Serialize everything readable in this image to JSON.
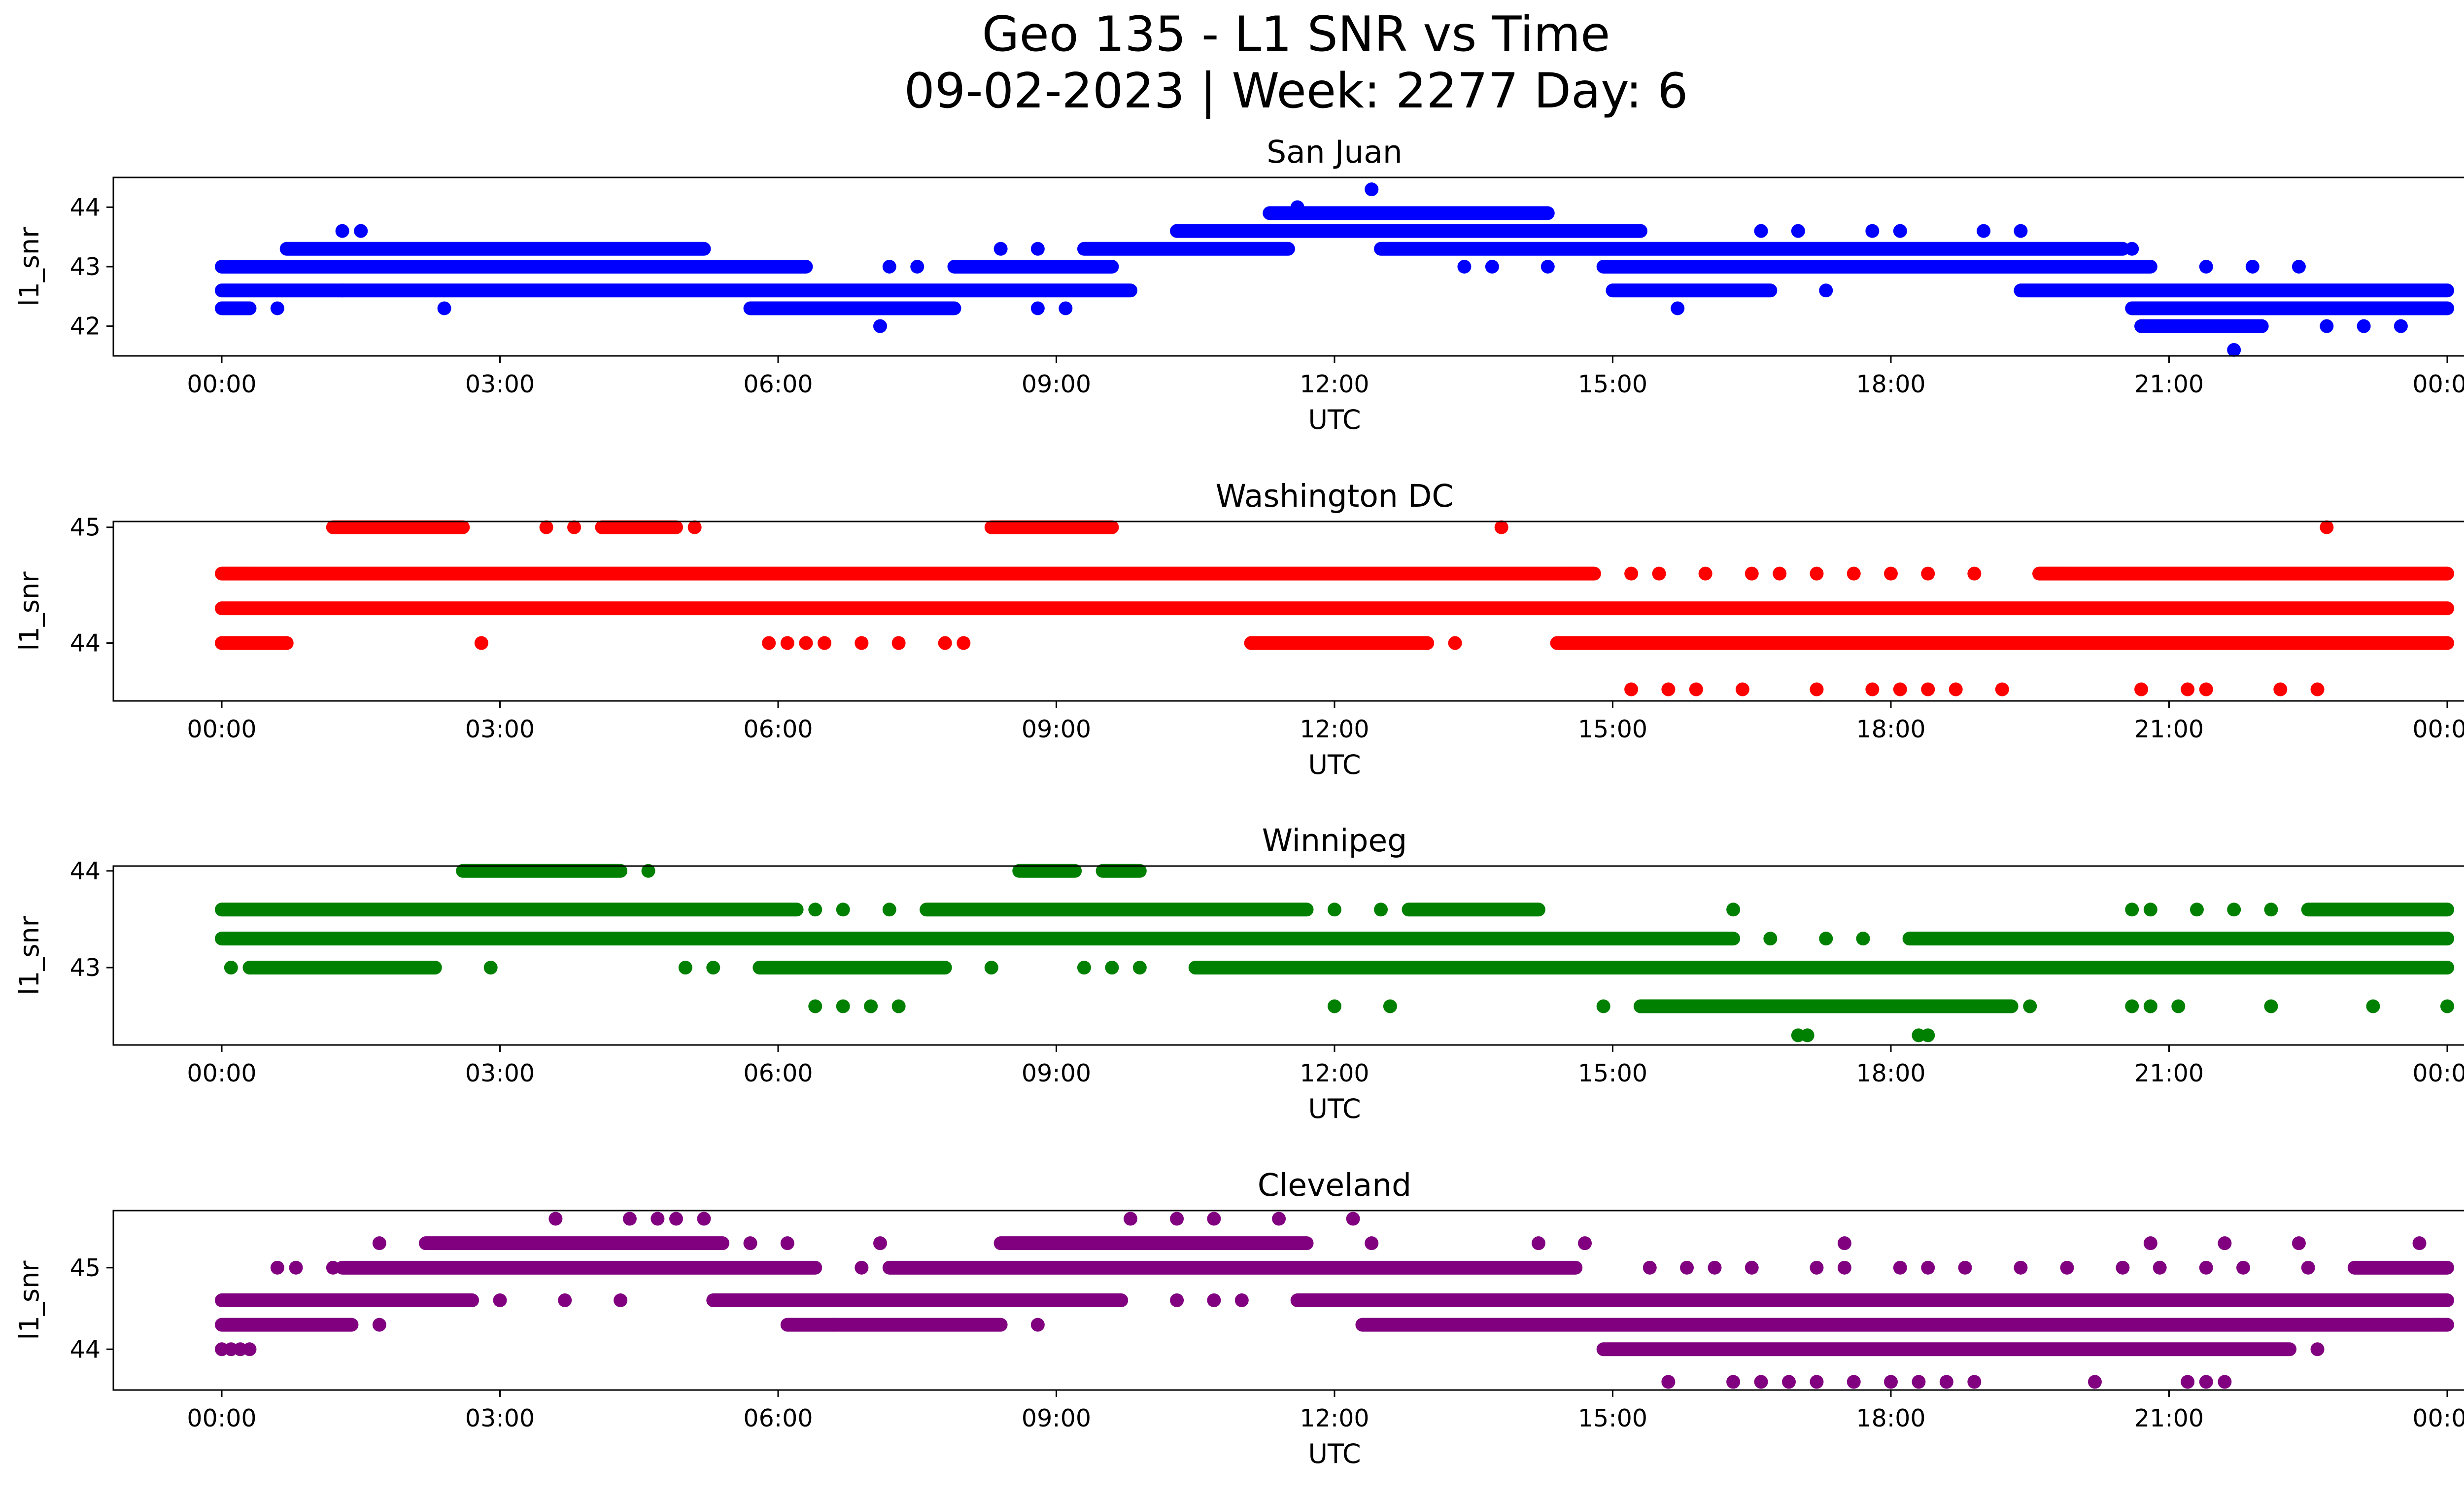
{
  "figure": {
    "title_line1": "Geo 135 - L1 SNR vs Time",
    "title_line2": "09-02-2023 | Week: 2277 Day: 6"
  },
  "chart_data": [
    {
      "type": "scatter",
      "title": "San Juan",
      "xlabel": "UTC",
      "ylabel": "l1_snr",
      "color": "#0000ff",
      "xlim": [
        "00:00",
        "24:00"
      ],
      "ylim": [
        41.5,
        44.5
      ],
      "x_ticks": [
        "00:00",
        "03:00",
        "06:00",
        "09:00",
        "12:00",
        "15:00",
        "18:00",
        "21:00",
        "00:00"
      ],
      "y_ticks": [
        42,
        43,
        44
      ],
      "bands": [
        {
          "y": 43.0,
          "from": 0.0,
          "to": 6.3
        },
        {
          "y": 43.0,
          "from": 7.9,
          "to": 9.6
        },
        {
          "y": 43.0,
          "from": 14.9,
          "to": 20.8
        },
        {
          "y": 43.3,
          "from": 0.7,
          "to": 5.2
        },
        {
          "y": 43.3,
          "from": 9.3,
          "to": 11.5
        },
        {
          "y": 43.3,
          "from": 12.5,
          "to": 20.5
        },
        {
          "y": 43.6,
          "from": 10.3,
          "to": 15.3
        },
        {
          "y": 43.9,
          "from": 11.3,
          "to": 14.3
        },
        {
          "y": 42.6,
          "from": 0.0,
          "to": 9.8
        },
        {
          "y": 42.6,
          "from": 15.0,
          "to": 16.7
        },
        {
          "y": 42.6,
          "from": 19.4,
          "to": 24.0
        },
        {
          "y": 42.3,
          "from": 0.0,
          "to": 0.3
        },
        {
          "y": 42.3,
          "from": 5.7,
          "to": 7.9
        },
        {
          "y": 42.3,
          "from": 20.6,
          "to": 24.0
        },
        {
          "y": 42.0,
          "from": 20.7,
          "to": 22.0
        }
      ],
      "points": [
        [
          0.6,
          42.3
        ],
        [
          1.3,
          43.6
        ],
        [
          1.5,
          43.6
        ],
        [
          1.3,
          42.6
        ],
        [
          2.4,
          42.3
        ],
        [
          7.1,
          42.0
        ],
        [
          7.2,
          43.0
        ],
        [
          7.5,
          43.0
        ],
        [
          8.4,
          43.3
        ],
        [
          8.8,
          43.3
        ],
        [
          8.8,
          42.3
        ],
        [
          9.1,
          42.3
        ],
        [
          11.6,
          44.0
        ],
        [
          12.4,
          44.3
        ],
        [
          13.4,
          43.0
        ],
        [
          13.7,
          43.0
        ],
        [
          14.3,
          43.0
        ],
        [
          15.7,
          42.3
        ],
        [
          16.6,
          43.6
        ],
        [
          17.0,
          43.6
        ],
        [
          17.3,
          42.6
        ],
        [
          17.8,
          43.6
        ],
        [
          18.1,
          43.6
        ],
        [
          19.0,
          43.6
        ],
        [
          19.4,
          43.6
        ],
        [
          20.6,
          43.3
        ],
        [
          21.7,
          41.6
        ],
        [
          21.4,
          43.0
        ],
        [
          21.9,
          43.0
        ],
        [
          22.4,
          43.0
        ],
        [
          22.7,
          42.0
        ],
        [
          23.1,
          42.0
        ],
        [
          23.5,
          42.0
        ]
      ]
    },
    {
      "type": "scatter",
      "title": "Washington DC",
      "xlabel": "UTC",
      "ylabel": "l1_snr",
      "color": "#ff0000",
      "xlim": [
        "00:00",
        "24:00"
      ],
      "ylim": [
        43.5,
        45.05
      ],
      "x_ticks": [
        "00:00",
        "03:00",
        "06:00",
        "09:00",
        "12:00",
        "15:00",
        "18:00",
        "21:00",
        "00:00"
      ],
      "y_ticks": [
        44,
        45
      ],
      "bands": [
        {
          "y": 44.3,
          "from": 0.0,
          "to": 24.0
        },
        {
          "y": 44.6,
          "from": 0.0,
          "to": 14.8
        },
        {
          "y": 44.6,
          "from": 19.6,
          "to": 24.0
        },
        {
          "y": 44.0,
          "from": 0.0,
          "to": 0.7
        },
        {
          "y": 44.0,
          "from": 11.1,
          "to": 13.0
        },
        {
          "y": 44.0,
          "from": 14.4,
          "to": 24.0
        },
        {
          "y": 45.0,
          "from": 1.2,
          "to": 2.6
        },
        {
          "y": 45.0,
          "from": 4.1,
          "to": 4.9
        },
        {
          "y": 45.0,
          "from": 8.3,
          "to": 9.6
        }
      ],
      "points": [
        [
          2.8,
          44.0
        ],
        [
          3.5,
          45.0
        ],
        [
          3.8,
          45.0
        ],
        [
          5.1,
          45.0
        ],
        [
          5.9,
          44.0
        ],
        [
          6.1,
          44.0
        ],
        [
          6.3,
          44.0
        ],
        [
          6.5,
          44.0
        ],
        [
          6.9,
          44.0
        ],
        [
          7.3,
          44.0
        ],
        [
          7.8,
          44.0
        ],
        [
          8.0,
          44.0
        ],
        [
          13.3,
          44.0
        ],
        [
          13.8,
          45.0
        ],
        [
          15.2,
          44.6
        ],
        [
          15.5,
          44.6
        ],
        [
          16.0,
          44.6
        ],
        [
          16.5,
          44.6
        ],
        [
          16.8,
          44.6
        ],
        [
          17.2,
          44.6
        ],
        [
          17.6,
          44.6
        ],
        [
          18.0,
          44.6
        ],
        [
          18.4,
          44.6
        ],
        [
          18.9,
          44.6
        ],
        [
          15.2,
          43.6
        ],
        [
          15.6,
          43.6
        ],
        [
          15.9,
          43.6
        ],
        [
          16.4,
          43.6
        ],
        [
          17.2,
          43.6
        ],
        [
          17.8,
          43.6
        ],
        [
          18.1,
          43.6
        ],
        [
          18.4,
          43.6
        ],
        [
          18.7,
          43.6
        ],
        [
          19.2,
          43.6
        ],
        [
          20.7,
          43.6
        ],
        [
          21.2,
          43.6
        ],
        [
          21.4,
          43.6
        ],
        [
          22.2,
          43.6
        ],
        [
          22.6,
          43.6
        ],
        [
          22.7,
          45.0
        ]
      ]
    },
    {
      "type": "scatter",
      "title": "Winnipeg",
      "xlabel": "UTC",
      "ylabel": "l1_snr",
      "color": "#008000",
      "xlim": [
        "00:00",
        "24:00"
      ],
      "ylim": [
        42.2,
        44.05
      ],
      "x_ticks": [
        "00:00",
        "03:00",
        "06:00",
        "09:00",
        "12:00",
        "15:00",
        "18:00",
        "21:00",
        "00:00"
      ],
      "y_ticks": [
        43,
        44
      ],
      "bands": [
        {
          "y": 43.3,
          "from": 0.0,
          "to": 16.3
        },
        {
          "y": 43.3,
          "from": 18.2,
          "to": 24.0
        },
        {
          "y": 43.6,
          "from": 0.0,
          "to": 6.2
        },
        {
          "y": 43.6,
          "from": 7.6,
          "to": 11.7
        },
        {
          "y": 43.6,
          "from": 12.8,
          "to": 14.2
        },
        {
          "y": 43.6,
          "from": 22.5,
          "to": 24.0
        },
        {
          "y": 43.0,
          "from": 0.3,
          "to": 2.3
        },
        {
          "y": 43.0,
          "from": 5.8,
          "to": 7.8
        },
        {
          "y": 43.0,
          "from": 10.5,
          "to": 24.0
        },
        {
          "y": 42.6,
          "from": 15.3,
          "to": 19.3
        },
        {
          "y": 44.0,
          "from": 2.6,
          "to": 4.3
        },
        {
          "y": 44.0,
          "from": 8.6,
          "to": 9.2
        },
        {
          "y": 44.0,
          "from": 9.5,
          "to": 9.9
        }
      ],
      "points": [
        [
          0.1,
          43.0
        ],
        [
          2.9,
          43.0
        ],
        [
          4.6,
          44.0
        ],
        [
          5.0,
          43.0
        ],
        [
          5.3,
          43.0
        ],
        [
          8.3,
          43.0
        ],
        [
          6.4,
          42.6
        ],
        [
          6.7,
          42.6
        ],
        [
          7.0,
          42.6
        ],
        [
          7.3,
          42.6
        ],
        [
          6.4,
          43.6
        ],
        [
          6.7,
          43.6
        ],
        [
          7.2,
          43.6
        ],
        [
          9.3,
          43.0
        ],
        [
          9.6,
          43.0
        ],
        [
          9.9,
          43.0
        ],
        [
          12.0,
          42.6
        ],
        [
          12.6,
          42.6
        ],
        [
          12.5,
          43.6
        ],
        [
          12.0,
          43.6
        ],
        [
          14.9,
          42.6
        ],
        [
          16.3,
          43.6
        ],
        [
          16.7,
          43.3
        ],
        [
          17.3,
          43.3
        ],
        [
          17.7,
          43.3
        ],
        [
          17.0,
          42.3
        ],
        [
          17.1,
          42.3
        ],
        [
          18.3,
          42.3
        ],
        [
          18.4,
          42.3
        ],
        [
          19.5,
          42.6
        ],
        [
          20.6,
          42.6
        ],
        [
          20.8,
          42.6
        ],
        [
          21.1,
          42.6
        ],
        [
          22.1,
          42.6
        ],
        [
          23.2,
          42.6
        ],
        [
          24.0,
          42.6
        ],
        [
          20.6,
          43.6
        ],
        [
          20.8,
          43.6
        ],
        [
          21.3,
          43.6
        ],
        [
          21.7,
          43.6
        ],
        [
          22.1,
          43.6
        ]
      ]
    },
    {
      "type": "scatter",
      "title": "Cleveland",
      "xlabel": "UTC",
      "ylabel": "l1_snr",
      "color": "#800080",
      "xlim": [
        "00:00",
        "24:00"
      ],
      "ylim": [
        43.5,
        45.7
      ],
      "x_ticks": [
        "00:00",
        "03:00",
        "06:00",
        "09:00",
        "12:00",
        "15:00",
        "18:00",
        "21:00",
        "00:00"
      ],
      "y_ticks": [
        44,
        45
      ],
      "bands": [
        {
          "y": 44.6,
          "from": 0.0,
          "to": 2.7
        },
        {
          "y": 44.6,
          "from": 5.3,
          "to": 9.7
        },
        {
          "y": 44.6,
          "from": 11.6,
          "to": 24.0
        },
        {
          "y": 44.3,
          "from": 0.0,
          "to": 1.4
        },
        {
          "y": 44.3,
          "from": 6.1,
          "to": 8.4
        },
        {
          "y": 44.3,
          "from": 12.3,
          "to": 24.0
        },
        {
          "y": 45.0,
          "from": 1.3,
          "to": 6.4
        },
        {
          "y": 45.0,
          "from": 7.2,
          "to": 14.6
        },
        {
          "y": 45.0,
          "from": 23.0,
          "to": 24.0
        },
        {
          "y": 45.3,
          "from": 2.2,
          "to": 5.4
        },
        {
          "y": 45.3,
          "from": 8.4,
          "to": 11.7
        },
        {
          "y": 44.0,
          "from": 14.9,
          "to": 22.3
        }
      ],
      "points": [
        [
          0.0,
          44.0
        ],
        [
          0.1,
          44.0
        ],
        [
          0.2,
          44.0
        ],
        [
          0.3,
          44.0
        ],
        [
          0.6,
          45.0
        ],
        [
          0.8,
          45.0
        ],
        [
          1.2,
          45.0
        ],
        [
          1.7,
          45.3
        ],
        [
          3.6,
          45.6
        ],
        [
          4.4,
          45.6
        ],
        [
          4.7,
          45.6
        ],
        [
          4.9,
          45.6
        ],
        [
          5.2,
          45.6
        ],
        [
          5.7,
          45.3
        ],
        [
          6.1,
          45.3
        ],
        [
          7.1,
          45.3
        ],
        [
          6.9,
          45.0
        ],
        [
          1.7,
          44.3
        ],
        [
          3.0,
          44.6
        ],
        [
          3.7,
          44.6
        ],
        [
          4.3,
          44.6
        ],
        [
          8.8,
          44.3
        ],
        [
          6.6,
          44.3
        ],
        [
          9.8,
          45.6
        ],
        [
          10.3,
          45.6
        ],
        [
          10.7,
          45.6
        ],
        [
          11.4,
          45.6
        ],
        [
          12.2,
          45.6
        ],
        [
          12.4,
          45.3
        ],
        [
          10.3,
          44.6
        ],
        [
          10.7,
          44.6
        ],
        [
          11.0,
          44.6
        ],
        [
          12.3,
          44.6
        ],
        [
          14.2,
          45.3
        ],
        [
          14.7,
          45.3
        ],
        [
          15.4,
          45.0
        ],
        [
          15.8,
          45.0
        ],
        [
          16.1,
          45.0
        ],
        [
          16.5,
          45.0
        ],
        [
          17.2,
          45.0
        ],
        [
          17.5,
          45.0
        ],
        [
          18.1,
          45.0
        ],
        [
          18.4,
          45.0
        ],
        [
          18.8,
          45.0
        ],
        [
          19.4,
          45.0
        ],
        [
          19.9,
          45.0
        ],
        [
          20.5,
          45.0
        ],
        [
          20.9,
          45.0
        ],
        [
          21.4,
          45.0
        ],
        [
          21.8,
          45.0
        ],
        [
          22.5,
          45.0
        ],
        [
          17.5,
          45.3
        ],
        [
          20.8,
          45.3
        ],
        [
          21.6,
          45.3
        ],
        [
          22.4,
          45.3
        ],
        [
          23.7,
          45.3
        ],
        [
          15.6,
          43.6
        ],
        [
          16.3,
          43.6
        ],
        [
          16.6,
          43.6
        ],
        [
          16.9,
          43.6
        ],
        [
          17.2,
          43.6
        ],
        [
          17.6,
          43.6
        ],
        [
          18.0,
          43.6
        ],
        [
          18.3,
          43.6
        ],
        [
          18.6,
          43.6
        ],
        [
          18.9,
          43.6
        ],
        [
          20.2,
          43.6
        ],
        [
          21.2,
          43.6
        ],
        [
          21.4,
          43.6
        ],
        [
          21.6,
          43.6
        ],
        [
          22.6,
          44.0
        ],
        [
          23.9,
          44.3
        ]
      ]
    }
  ]
}
